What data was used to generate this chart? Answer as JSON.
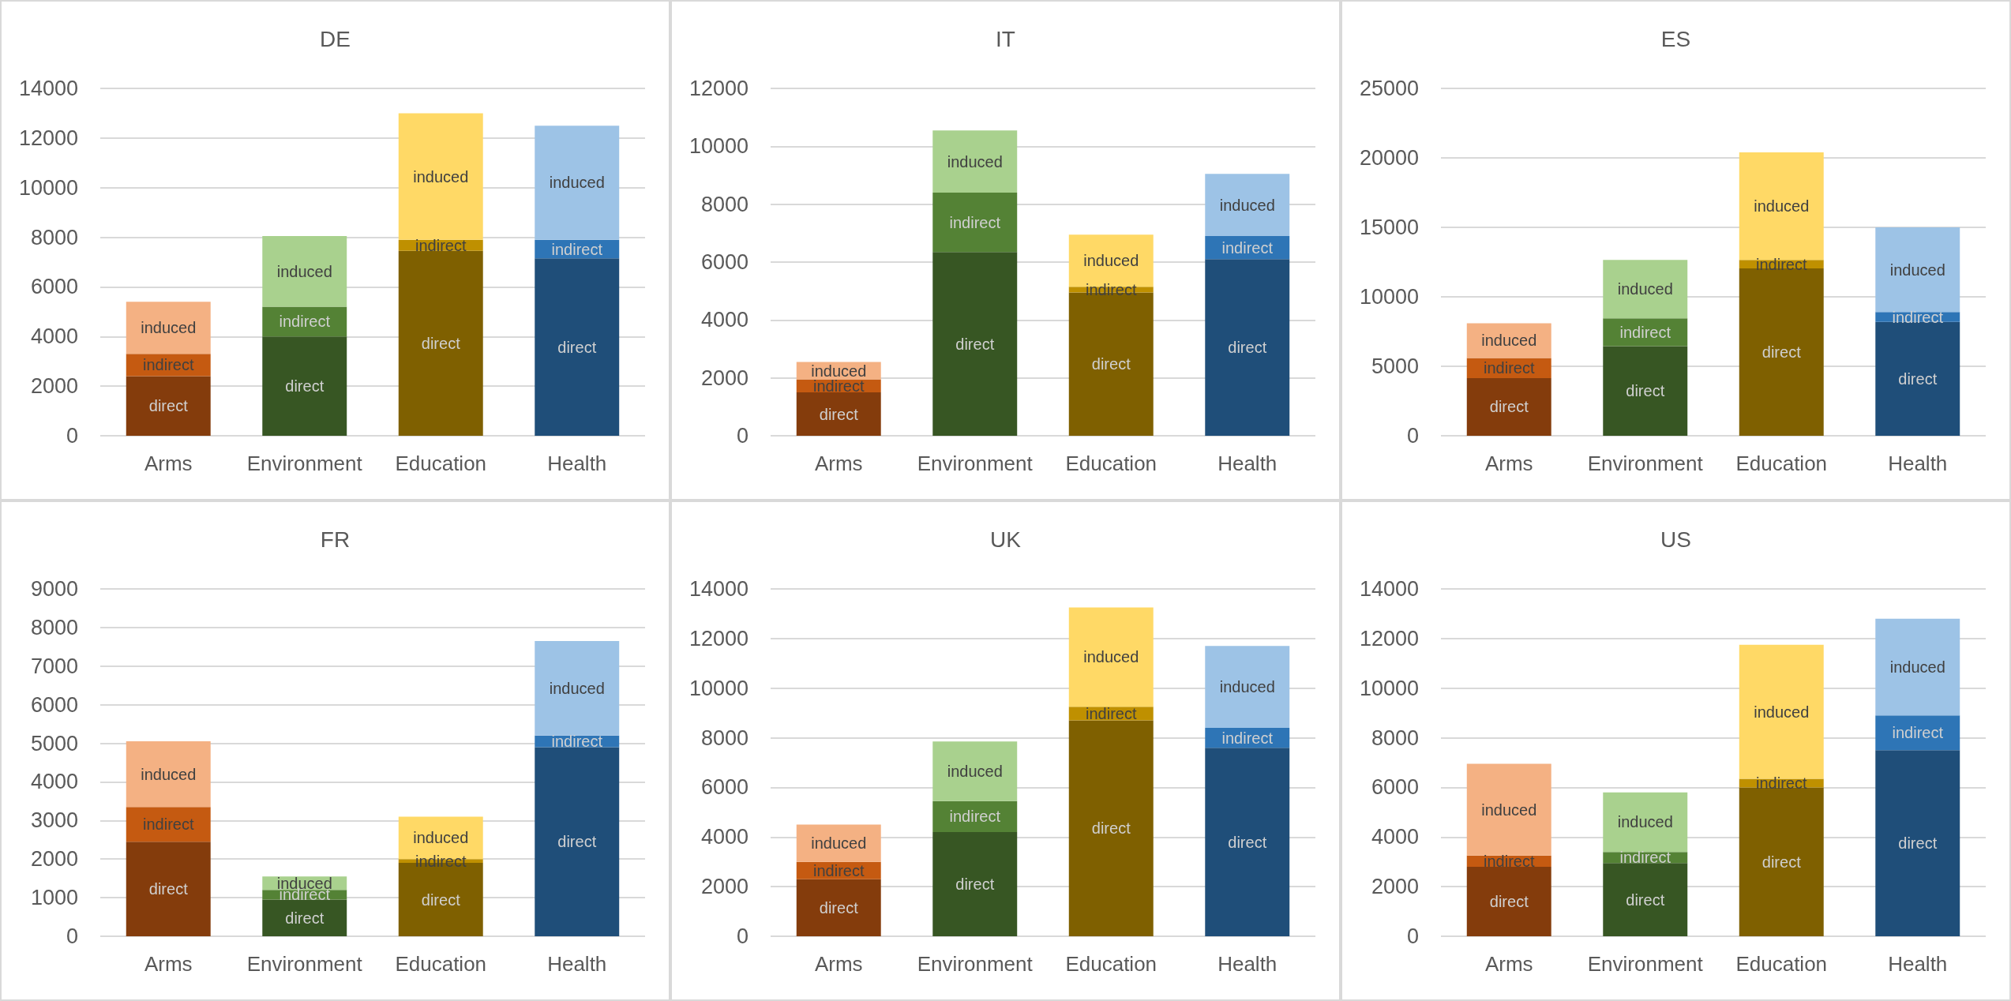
{
  "chart_data": [
    {
      "type": "bar",
      "title": "DE",
      "categories": [
        "Arms",
        "Environment",
        "Education",
        "Health"
      ],
      "stacked": true,
      "grid": "y",
      "ylim": [
        0,
        14000
      ],
      "yticks": [
        0,
        2000,
        4000,
        6000,
        8000,
        10000,
        12000,
        14000
      ],
      "series": [
        {
          "name": "direct",
          "colors": [
            "#843c0c",
            "#375623",
            "#7f6000",
            "#1f4e79"
          ],
          "values": [
            2400,
            4000,
            7450,
            7150
          ]
        },
        {
          "name": "indirect",
          "colors": [
            "#c55a11",
            "#548235",
            "#bf9000",
            "#2e75b6"
          ],
          "values": [
            900,
            1200,
            450,
            750
          ]
        },
        {
          "name": "induced",
          "colors": [
            "#f4b183",
            "#a9d18e",
            "#ffd966",
            "#9dc3e6"
          ],
          "values": [
            2100,
            2850,
            5100,
            4600
          ]
        }
      ]
    },
    {
      "type": "bar",
      "title": "IT",
      "categories": [
        "Arms",
        "Environment",
        "Education",
        "Health"
      ],
      "stacked": true,
      "grid": "y",
      "ylim": [
        0,
        12000
      ],
      "yticks": [
        0,
        2000,
        4000,
        6000,
        8000,
        10000,
        12000
      ],
      "series": [
        {
          "name": "direct",
          "colors": [
            "#843c0c",
            "#375623",
            "#7f6000",
            "#1f4e79"
          ],
          "values": [
            1500,
            6350,
            4950,
            6100
          ]
        },
        {
          "name": "indirect",
          "colors": [
            "#c55a11",
            "#548235",
            "#bf9000",
            "#2e75b6"
          ],
          "values": [
            450,
            2050,
            200,
            800
          ]
        },
        {
          "name": "induced",
          "colors": [
            "#f4b183",
            "#a9d18e",
            "#ffd966",
            "#9dc3e6"
          ],
          "values": [
            600,
            2150,
            1800,
            2150
          ]
        }
      ]
    },
    {
      "type": "bar",
      "title": "ES",
      "categories": [
        "Arms",
        "Environment",
        "Education",
        "Health"
      ],
      "stacked": true,
      "grid": "y",
      "ylim": [
        0,
        25000
      ],
      "yticks": [
        0,
        5000,
        10000,
        15000,
        20000,
        25000
      ],
      "series": [
        {
          "name": "direct",
          "colors": [
            "#843c0c",
            "#375623",
            "#7f6000",
            "#1f4e79"
          ],
          "values": [
            4150,
            6450,
            12050,
            8200
          ]
        },
        {
          "name": "indirect",
          "colors": [
            "#c55a11",
            "#548235",
            "#bf9000",
            "#2e75b6"
          ],
          "values": [
            1450,
            2000,
            600,
            700
          ]
        },
        {
          "name": "induced",
          "colors": [
            "#f4b183",
            "#a9d18e",
            "#ffd966",
            "#9dc3e6"
          ],
          "values": [
            2500,
            4200,
            7750,
            6100
          ]
        }
      ]
    },
    {
      "type": "bar",
      "title": "FR",
      "categories": [
        "Arms",
        "Environment",
        "Education",
        "Health"
      ],
      "stacked": true,
      "grid": "y",
      "ylim": [
        0,
        9000
      ],
      "yticks": [
        0,
        1000,
        2000,
        3000,
        4000,
        5000,
        6000,
        7000,
        8000,
        9000
      ],
      "series": [
        {
          "name": "direct",
          "colors": [
            "#843c0c",
            "#375623",
            "#7f6000",
            "#1f4e79"
          ],
          "values": [
            2450,
            950,
            1900,
            4900
          ]
        },
        {
          "name": "indirect",
          "colors": [
            "#c55a11",
            "#548235",
            "#bf9000",
            "#2e75b6"
          ],
          "values": [
            900,
            250,
            100,
            300
          ]
        },
        {
          "name": "induced",
          "colors": [
            "#f4b183",
            "#a9d18e",
            "#ffd966",
            "#9dc3e6"
          ],
          "values": [
            1700,
            350,
            1100,
            2450
          ]
        }
      ]
    },
    {
      "type": "bar",
      "title": "UK",
      "categories": [
        "Arms",
        "Environment",
        "Education",
        "Health"
      ],
      "stacked": true,
      "grid": "y",
      "ylim": [
        0,
        14000
      ],
      "yticks": [
        0,
        2000,
        4000,
        6000,
        8000,
        10000,
        12000,
        14000
      ],
      "series": [
        {
          "name": "direct",
          "colors": [
            "#843c0c",
            "#375623",
            "#7f6000",
            "#1f4e79"
          ],
          "values": [
            2300,
            4200,
            8700,
            7600
          ]
        },
        {
          "name": "indirect",
          "colors": [
            "#c55a11",
            "#548235",
            "#bf9000",
            "#2e75b6"
          ],
          "values": [
            700,
            1250,
            550,
            800
          ]
        },
        {
          "name": "induced",
          "colors": [
            "#f4b183",
            "#a9d18e",
            "#ffd966",
            "#9dc3e6"
          ],
          "values": [
            1500,
            2400,
            4000,
            3300
          ]
        }
      ]
    },
    {
      "type": "bar",
      "title": "US",
      "categories": [
        "Arms",
        "Environment",
        "Education",
        "Health"
      ],
      "stacked": true,
      "grid": "y",
      "ylim": [
        0,
        14000
      ],
      "yticks": [
        0,
        2000,
        4000,
        6000,
        8000,
        10000,
        12000,
        14000
      ],
      "series": [
        {
          "name": "direct",
          "colors": [
            "#843c0c",
            "#375623",
            "#7f6000",
            "#1f4e79"
          ],
          "values": [
            2800,
            2950,
            6000,
            7500
          ]
        },
        {
          "name": "indirect",
          "colors": [
            "#c55a11",
            "#548235",
            "#bf9000",
            "#2e75b6"
          ],
          "values": [
            450,
            450,
            350,
            1400
          ]
        },
        {
          "name": "induced",
          "colors": [
            "#f4b183",
            "#a9d18e",
            "#ffd966",
            "#9dc3e6"
          ],
          "values": [
            3700,
            2400,
            5400,
            3900
          ]
        }
      ]
    }
  ]
}
